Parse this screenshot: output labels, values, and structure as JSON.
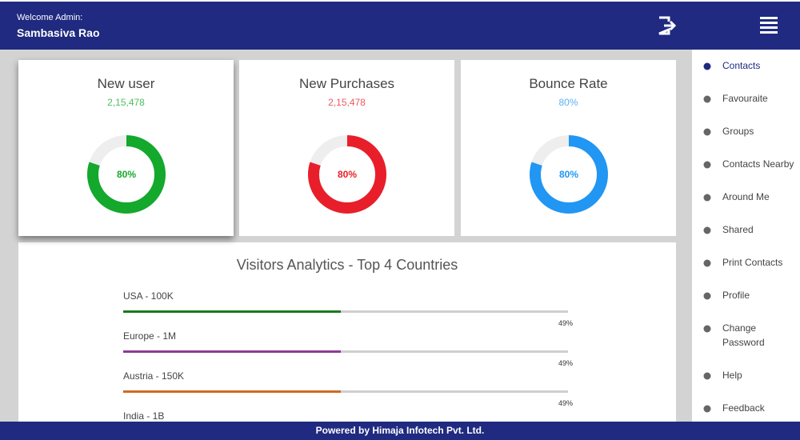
{
  "header": {
    "welcome": "Welcome Admin:",
    "user": "Sambasiva Rao"
  },
  "cards": [
    {
      "title": "New user",
      "count": "2,15,478",
      "percent": {
        "value": 80,
        "label": "80%"
      },
      "color": "#14a82c"
    },
    {
      "title": "New Purchases",
      "count": "2,15,478",
      "percent": {
        "value": 80,
        "label": "80%"
      },
      "color": "#e81f2a"
    },
    {
      "title": "Bounce Rate",
      "count": "80%",
      "percent": {
        "value": 80,
        "label": "80%"
      },
      "color": "#2196f3"
    }
  ],
  "analytics": {
    "title": "Visitors Analytics - Top 4 Countries",
    "bars": [
      {
        "label": "USA - 100K",
        "percent": {
          "value": 49,
          "label": "49%"
        },
        "color": "#1b7a1b"
      },
      {
        "label": "Europe - 1M",
        "percent": {
          "value": 49,
          "label": "49%"
        },
        "color": "#8e3a96"
      },
      {
        "label": "Austria - 150K",
        "percent": {
          "value": 49,
          "label": "49%"
        },
        "color": "#d2691e"
      },
      {
        "label": "India - 1B"
      }
    ]
  },
  "sidebar": [
    "Contacts",
    "Favouraite",
    "Groups",
    "Contacts Nearby",
    "Around Me",
    "Shared",
    "Print Contacts",
    "Profile",
    "Change Password",
    "Help",
    "Feedback"
  ],
  "footer": "Powered by Himaja Infotech Pvt. Ltd."
}
